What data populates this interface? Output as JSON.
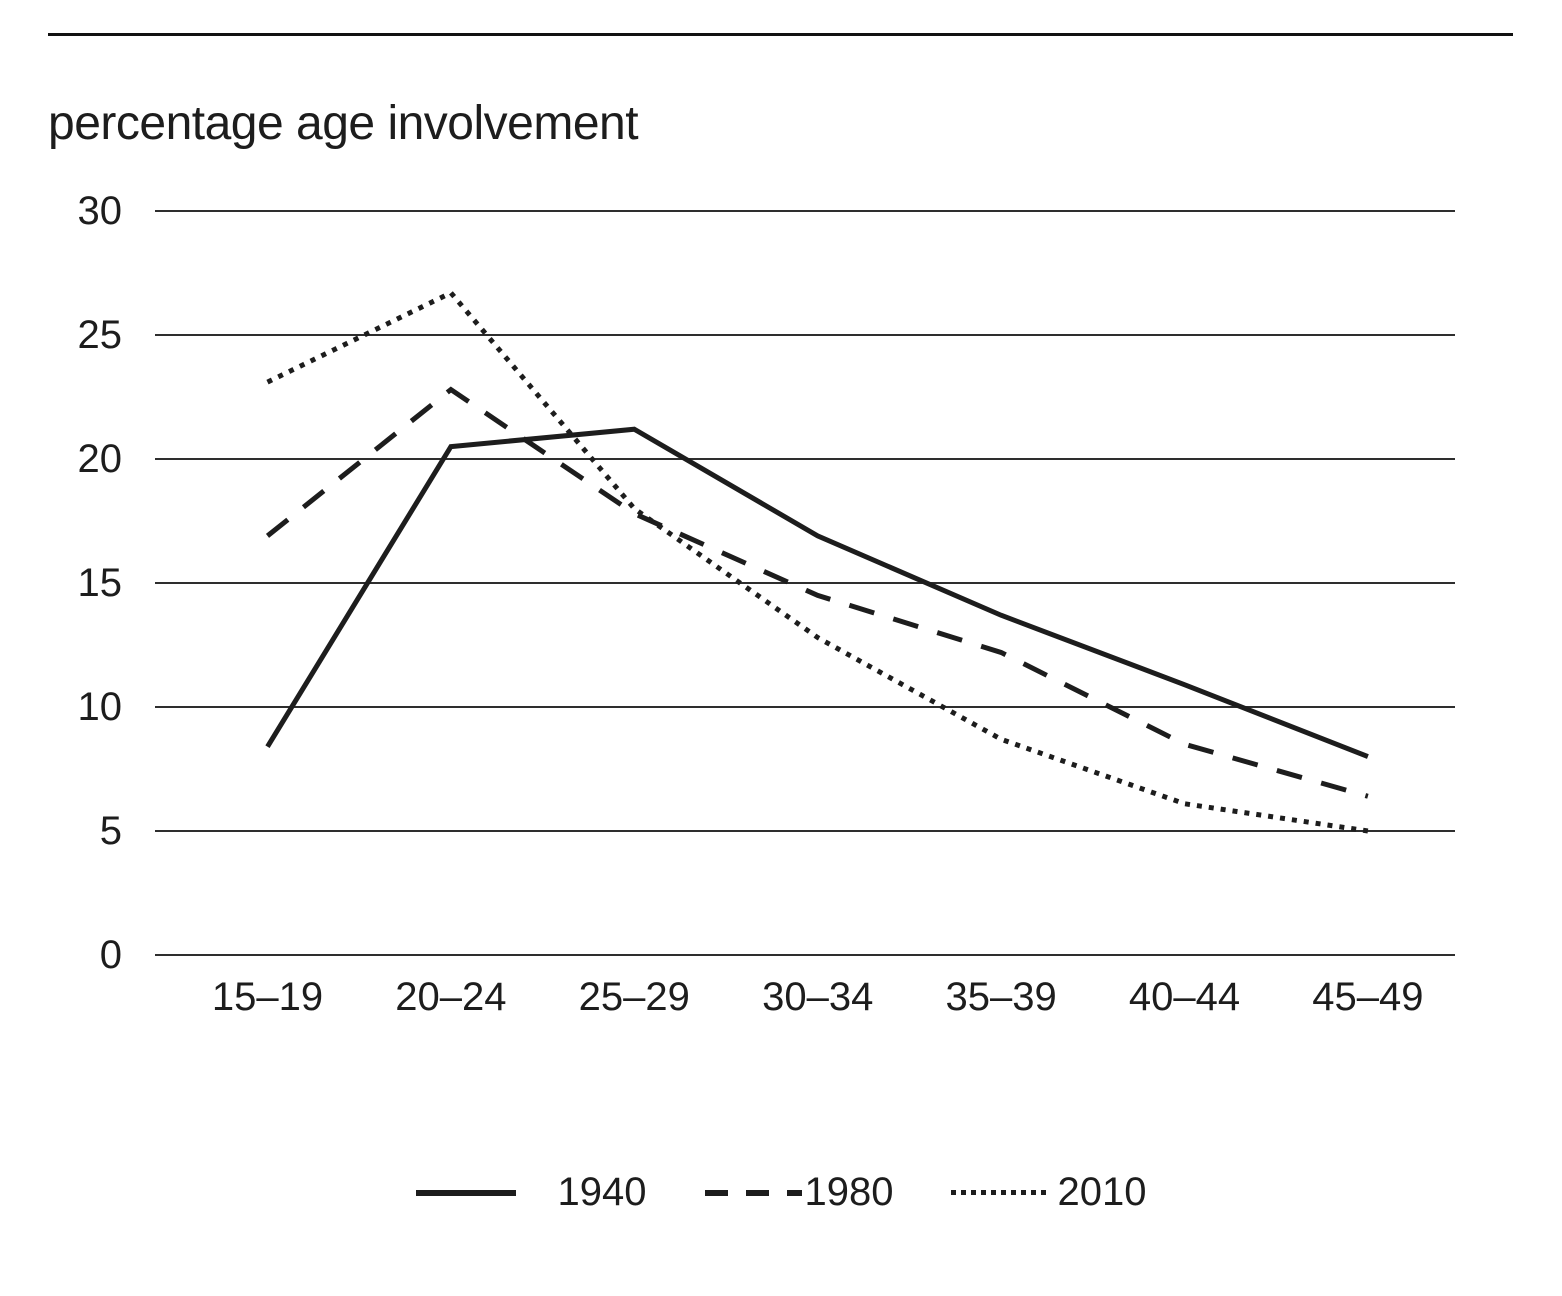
{
  "page": {
    "title": "percentage age involvement"
  },
  "chart_data": {
    "type": "line",
    "title": "percentage age involvement",
    "categories": [
      "15–19",
      "20–24",
      "25–29",
      "30–34",
      "35–39",
      "40–44",
      "45–49"
    ],
    "series": [
      {
        "name": "1940",
        "style": "solid",
        "values": [
          8.4,
          20.5,
          21.2,
          16.9,
          13.7,
          10.9,
          8.0
        ]
      },
      {
        "name": "1980",
        "style": "dashed",
        "values": [
          16.9,
          22.8,
          17.8,
          14.5,
          12.2,
          8.5,
          6.4
        ]
      },
      {
        "name": "2010",
        "style": "dotted",
        "values": [
          23.1,
          26.7,
          18.0,
          12.8,
          8.7,
          6.1,
          5.0
        ]
      }
    ],
    "xlabel": "",
    "ylabel": "",
    "ylim": [
      0,
      30
    ],
    "yticks": [
      0,
      5,
      10,
      15,
      20,
      25,
      30
    ],
    "grid": "horizontal",
    "legend_position": "bottom",
    "line_color": "#1d1d1d",
    "grid_color": "#2e2e2e",
    "background_color": "#ffffff"
  }
}
